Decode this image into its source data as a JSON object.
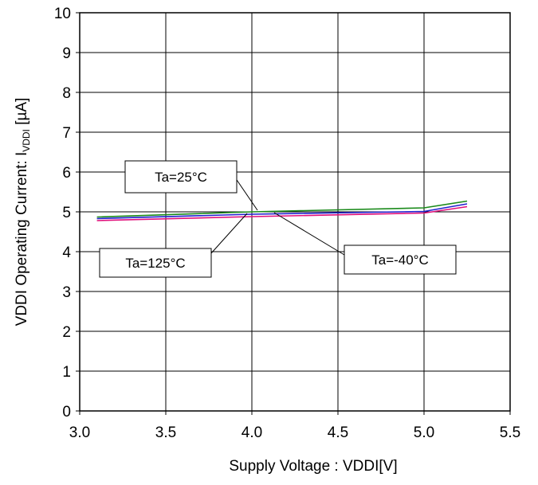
{
  "chart_data": {
    "type": "line",
    "title": "",
    "xlabel": "Supply Voltage : VDDI[V]",
    "ylabel_main": "VDDI Operating Current: I",
    "ylabel_sub": "VDDI",
    "ylabel_unit": " [µA]",
    "xlim": [
      3.0,
      5.5
    ],
    "ylim": [
      0,
      10
    ],
    "x_ticks": [
      "3.0",
      "3.5",
      "4.0",
      "4.5",
      "5.0",
      "5.5"
    ],
    "y_ticks": [
      "0",
      "1",
      "2",
      "3",
      "4",
      "5",
      "6",
      "7",
      "8",
      "9",
      "10"
    ],
    "grid": true,
    "series": [
      {
        "name": "Ta=-40°C",
        "color": "#1a8a1a",
        "x": [
          3.1,
          4.0,
          5.0,
          5.25
        ],
        "y": [
          4.87,
          5.0,
          5.1,
          5.27
        ]
      },
      {
        "name": "Ta=25°C",
        "color": "#2020d0",
        "x": [
          3.1,
          4.0,
          5.0,
          5.25
        ],
        "y": [
          4.83,
          4.94,
          5.01,
          5.2
        ]
      },
      {
        "name": "Ta=125°C",
        "color": "#e0107a",
        "x": [
          3.1,
          4.0,
          5.0,
          5.25
        ],
        "y": [
          4.78,
          4.88,
          4.97,
          5.13
        ]
      }
    ],
    "annotations": [
      {
        "label": "Ta=25°C"
      },
      {
        "label": "Ta=125°C"
      },
      {
        "label": "Ta=-40°C"
      }
    ]
  }
}
